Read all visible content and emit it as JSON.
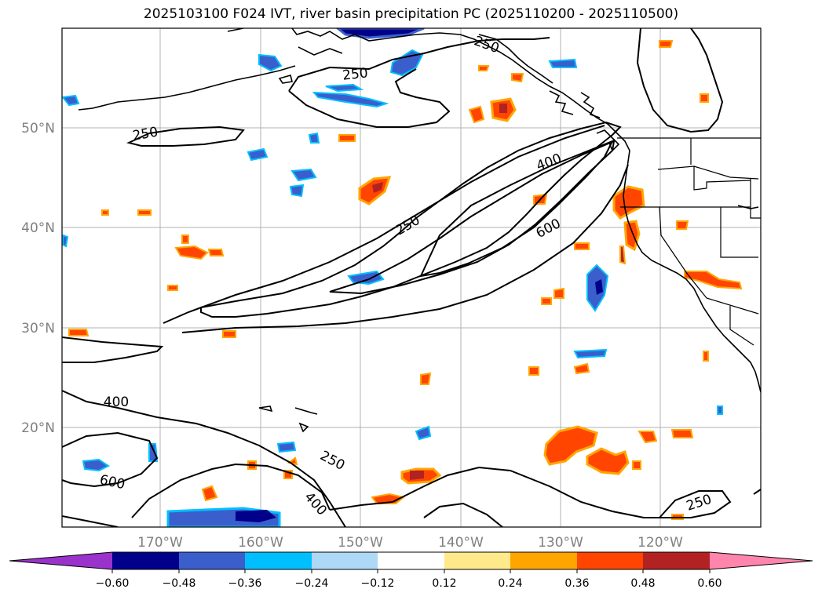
{
  "title": "2025103100 F024 IVT, river basin precipitation PC (2025110200 - 2025110500)",
  "map": {
    "lat_labels": [
      "50°N",
      "40°N",
      "30°N",
      "20°N"
    ],
    "lon_labels": [
      "170°W",
      "160°W",
      "150°W",
      "140°W",
      "130°W",
      "120°W"
    ],
    "contour_labels": [
      "250",
      "250",
      "250",
      "400",
      "250",
      "600",
      "400",
      "600",
      "250",
      "400",
      "250"
    ]
  },
  "colorbar": {
    "ticks": [
      "−0.60",
      "−0.48",
      "−0.36",
      "−0.24",
      "−0.12",
      "0.12",
      "0.24",
      "0.36",
      "0.48",
      "0.60"
    ],
    "colors": [
      "#9933cc",
      "#00008b",
      "#3a5fcd",
      "#00bfff",
      "#add8f6",
      "#ffffff",
      "#ffe98a",
      "#ffa500",
      "#ff4500",
      "#b22222",
      "#ff85ad"
    ]
  }
}
